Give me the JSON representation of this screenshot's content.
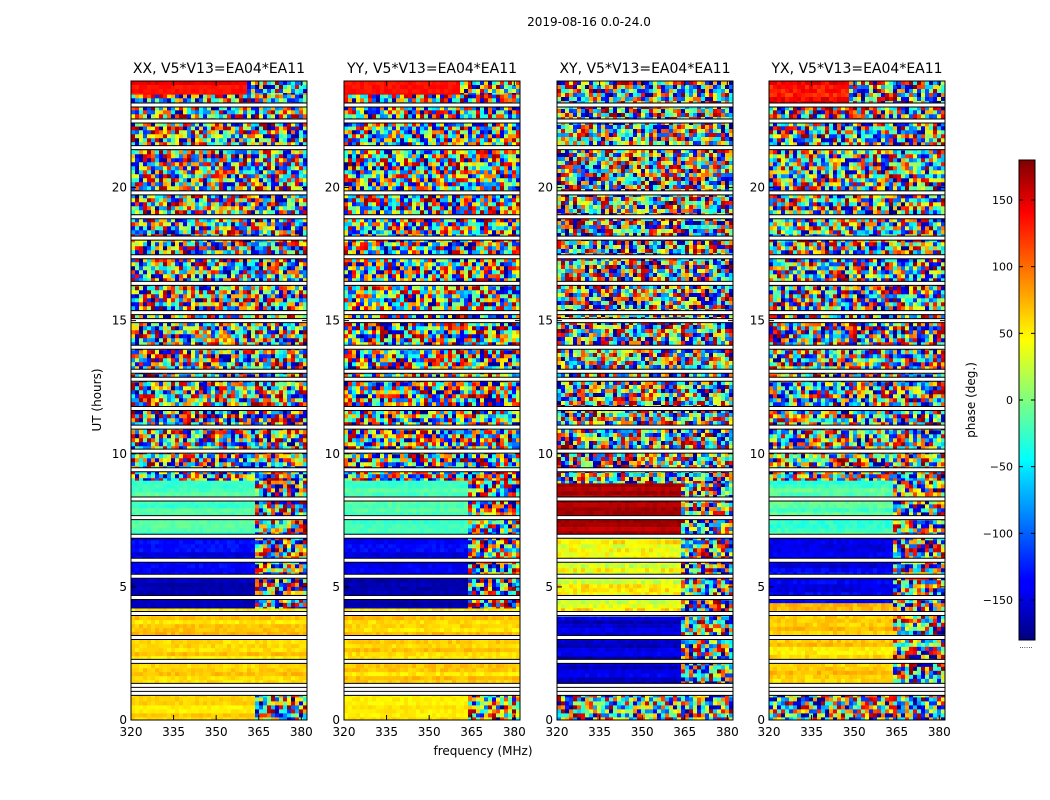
{
  "figure": {
    "suptitle": "2019-08-16 0.0-24.0",
    "ylabel": "UT (hours)",
    "xlabel": "frequency (MHz)"
  },
  "chart_data": {
    "type": "heatmap",
    "title": "2019-08-16 0.0-24.0",
    "xlabel": "frequency (MHz)",
    "ylabel": "UT (hours)",
    "xlim": [
      320,
      382
    ],
    "ylim": [
      0,
      24
    ],
    "xticks": [
      320,
      335,
      350,
      365,
      380
    ],
    "yticks": [
      0,
      5,
      10,
      15,
      20
    ],
    "colormap": "jet",
    "colorbar": {
      "label": "phase (deg.)",
      "range": [
        -180,
        180
      ],
      "ticks": [
        -150,
        -100,
        -50,
        0,
        50,
        100,
        150
      ],
      "tick_labels": [
        "−150",
        "−100",
        "−50",
        "0",
        "50",
        "100",
        "150"
      ],
      "note": "......"
    },
    "gap_hours": [
      1.0,
      1.3,
      2.2,
      3.1,
      4.0,
      4.6,
      5.4,
      6.0,
      6.9,
      7.6,
      8.3,
      9.4,
      10.1,
      11.0,
      11.7,
      12.8,
      13.1,
      14.0,
      15.0,
      15.3,
      16.4,
      17.4,
      18.1,
      18.9,
      19.8,
      21.5,
      22.5,
      23.1
    ],
    "panels": [
      {
        "title": "XX, V5*V13=EA04*EA11",
        "segments": [
          {
            "t0": 0.0,
            "t1": 1.0,
            "base": 55,
            "var": 30,
            "noisy": false,
            "edge": 363,
            "noise_dense": true
          },
          {
            "t0": 1.3,
            "t1": 4.2,
            "base": 60,
            "var": 35,
            "noisy": false,
            "edge": 382
          },
          {
            "t0": 4.2,
            "t1": 5.3,
            "base": -160,
            "var": 30,
            "noisy": false,
            "edge": 363
          },
          {
            "t0": 5.3,
            "t1": 6.9,
            "base": -140,
            "var": 35,
            "noisy": false,
            "edge": 363
          },
          {
            "t0": 6.9,
            "t1": 9.0,
            "base": -20,
            "var": 30,
            "noisy": false,
            "edge": 364
          },
          {
            "t0": 9.0,
            "t1": 22.3,
            "base": 0,
            "var": 180,
            "noisy": true,
            "edge": 382
          },
          {
            "t0": 22.3,
            "t1": 23.5,
            "base": 0,
            "var": 180,
            "noisy": true,
            "edge": 382
          },
          {
            "t0": 23.5,
            "t1": 24.0,
            "base": 135,
            "var": 25,
            "noisy": false,
            "edge": 361
          }
        ]
      },
      {
        "title": "YY, V5*V13=EA04*EA11",
        "segments": [
          {
            "t0": 0.0,
            "t1": 1.0,
            "base": 55,
            "var": 30,
            "noisy": false,
            "edge": 363,
            "noise_dense": true
          },
          {
            "t0": 1.3,
            "t1": 4.2,
            "base": 60,
            "var": 35,
            "noisy": false,
            "edge": 382
          },
          {
            "t0": 4.2,
            "t1": 5.3,
            "base": -160,
            "var": 30,
            "noisy": false,
            "edge": 363
          },
          {
            "t0": 5.3,
            "t1": 6.9,
            "base": -140,
            "var": 35,
            "noisy": false,
            "edge": 363
          },
          {
            "t0": 6.9,
            "t1": 9.0,
            "base": -20,
            "var": 30,
            "noisy": false,
            "edge": 364
          },
          {
            "t0": 9.0,
            "t1": 22.3,
            "base": 0,
            "var": 180,
            "noisy": true,
            "edge": 382
          },
          {
            "t0": 22.3,
            "t1": 23.5,
            "base": 0,
            "var": 180,
            "noisy": true,
            "edge": 382
          },
          {
            "t0": 23.5,
            "t1": 24.0,
            "base": 135,
            "var": 25,
            "noisy": false,
            "edge": 361
          }
        ]
      },
      {
        "title": "XY, V5*V13=EA04*EA11",
        "segments": [
          {
            "t0": 0.0,
            "t1": 1.0,
            "base": 0,
            "var": 180,
            "noisy": true,
            "edge": 382
          },
          {
            "t0": 1.3,
            "t1": 2.2,
            "base": -150,
            "var": 40,
            "noisy": false,
            "edge": 364
          },
          {
            "t0": 2.2,
            "t1": 3.9,
            "base": -150,
            "var": 40,
            "noisy": false,
            "edge": 364
          },
          {
            "t0": 3.9,
            "t1": 6.9,
            "base": 40,
            "var": 70,
            "noisy": false,
            "edge": 364
          },
          {
            "t0": 6.9,
            "t1": 8.9,
            "base": 165,
            "var": 25,
            "noisy": false,
            "edge": 364
          },
          {
            "t0": 8.9,
            "t1": 24.0,
            "base": 0,
            "var": 180,
            "noisy": true,
            "edge": 382
          }
        ]
      },
      {
        "title": "YX, V5*V13=EA04*EA11",
        "segments": [
          {
            "t0": 0.0,
            "t1": 1.0,
            "base": 0,
            "var": 180,
            "noisy": true,
            "edge": 382
          },
          {
            "t0": 1.3,
            "t1": 4.4,
            "base": 60,
            "var": 40,
            "noisy": false,
            "edge": 364
          },
          {
            "t0": 4.4,
            "t1": 6.9,
            "base": -140,
            "var": 40,
            "noisy": false,
            "edge": 364
          },
          {
            "t0": 6.9,
            "t1": 9.0,
            "base": -20,
            "var": 40,
            "noisy": false,
            "edge": 364
          },
          {
            "t0": 9.0,
            "t1": 23.2,
            "base": 0,
            "var": 180,
            "noisy": true,
            "edge": 382
          },
          {
            "t0": 23.2,
            "t1": 24.0,
            "base": 130,
            "var": 60,
            "noisy": false,
            "edge": 348
          }
        ]
      }
    ]
  }
}
